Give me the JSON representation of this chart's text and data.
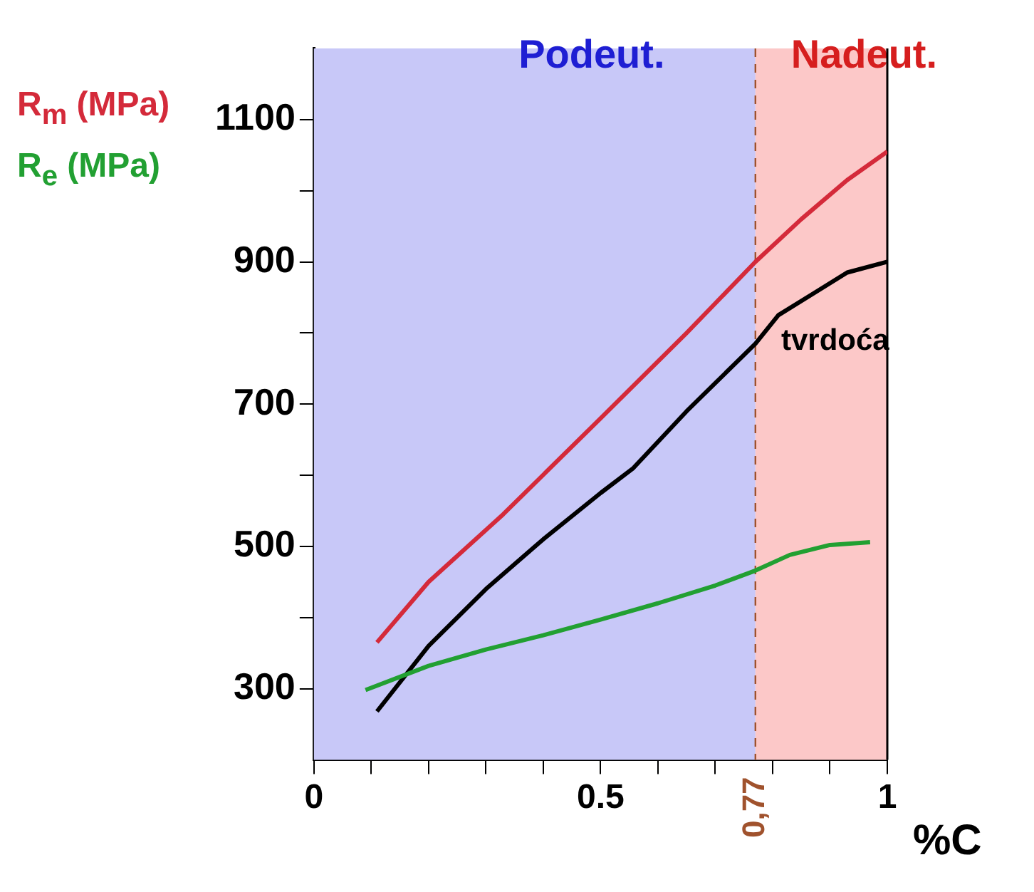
{
  "chart_data": {
    "type": "line",
    "xlabel": "%C",
    "xlim": [
      0,
      1
    ],
    "ylim": [
      200,
      1200
    ],
    "xticks": [
      0,
      {
        "value": 0.1,
        "label": null
      },
      {
        "value": 0.2,
        "label": null
      },
      {
        "value": 0.3,
        "label": null
      },
      {
        "value": 0.4,
        "label": null
      },
      0.5,
      {
        "value": 0.6,
        "label": null
      },
      {
        "value": 0.7,
        "label": null
      },
      {
        "value": 0.8,
        "label": null
      },
      {
        "value": 0.9,
        "label": null
      },
      1
    ],
    "yticks": [
      300,
      {
        "value": 400,
        "label": null
      },
      500,
      {
        "value": 600,
        "label": null
      },
      700,
      {
        "value": 800,
        "label": null
      },
      900,
      {
        "value": 1000,
        "label": null
      },
      1100
    ],
    "grid": false,
    "legend": "left",
    "marker": "none",
    "line_style": "solid",
    "bands": [
      {
        "axis": "x",
        "from": 0,
        "to": 0.77,
        "label": "Podeut.",
        "color": "#c8c8f8"
      },
      {
        "axis": "x",
        "from": 0.77,
        "to": 1,
        "label": "Nadeut.",
        "color": "#fcc8c8"
      }
    ],
    "ref_lines": [
      {
        "axis": "x",
        "value": 0.77,
        "label": "0,77",
        "color": "#a0522d",
        "line_style": "dashed"
      }
    ],
    "annotations": [
      {
        "text": "tvrdoća",
        "x": 0.81,
        "y": 825
      }
    ],
    "series": [
      {
        "name": "R$_{m}$ (MPa)",
        "color": "#d42a3a",
        "x": [
          0.11,
          0.2,
          0.33,
          0.5,
          0.65,
          0.77,
          0.85,
          0.93,
          1.0
        ],
        "values": [
          365,
          450,
          545,
          680,
          800,
          900,
          960,
          1015,
          1055
        ]
      },
      {
        "name": "R$_{e}$ (MPa)",
        "color": "#22a032",
        "x": [
          0.09,
          0.2,
          0.3,
          0.4,
          0.5,
          0.6,
          0.7,
          0.77,
          0.83,
          0.9,
          0.97
        ],
        "values": [
          298,
          332,
          355,
          375,
          397,
          420,
          445,
          466,
          488,
          502,
          506
        ]
      },
      {
        "color": "#000000",
        "x": [
          0.11,
          0.2,
          0.3,
          0.4,
          0.5,
          0.557,
          0.65,
          0.77,
          0.81,
          0.87,
          0.93,
          1.0
        ],
        "values": [
          268,
          360,
          440,
          510,
          575,
          610,
          690,
          785,
          825,
          855,
          885,
          900
        ]
      }
    ]
  }
}
